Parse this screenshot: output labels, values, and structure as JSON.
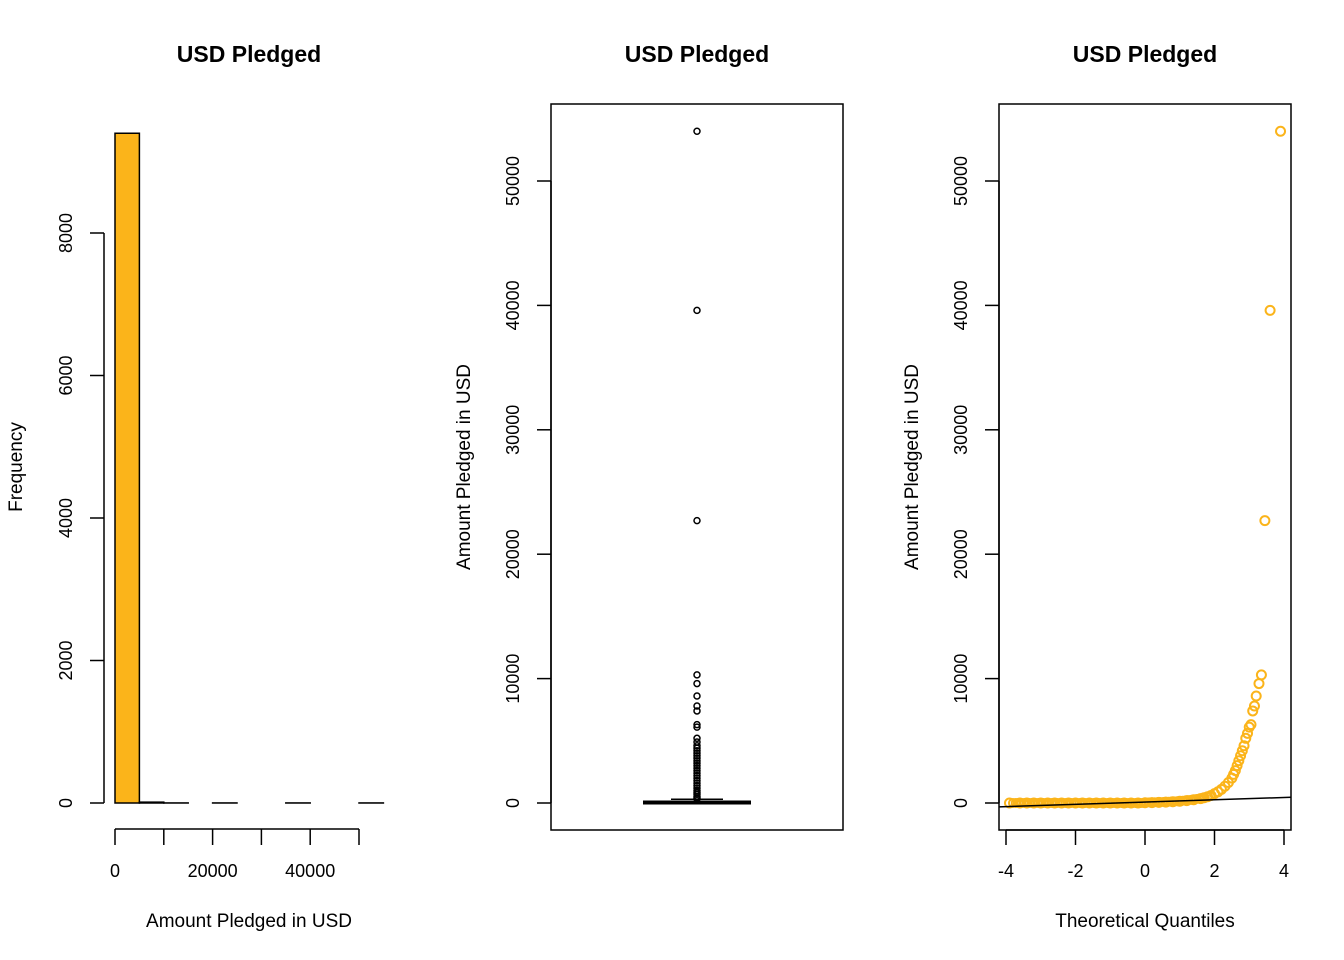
{
  "colors": {
    "fill": "#FBB41A",
    "ink": "#000000"
  },
  "chart_data": [
    {
      "type": "histogram",
      "title": "USD Pledged",
      "xlabel": "Amount Pledged in USD",
      "ylabel": "Frequency",
      "xlim": [
        0,
        55000
      ],
      "ylim": [
        0,
        9400
      ],
      "x_ticks": [
        0,
        20000,
        40000
      ],
      "x_tick_marks": [
        0,
        10000,
        20000,
        30000,
        40000,
        50000
      ],
      "y_ticks": [
        0,
        2000,
        4000,
        6000,
        8000
      ],
      "bins": [
        {
          "from": 0,
          "to": 5000,
          "count": 9400
        },
        {
          "from": 5000,
          "to": 10000,
          "count": 12
        },
        {
          "from": 10000,
          "to": 15000,
          "count": 1
        },
        {
          "from": 15000,
          "to": 20000,
          "count": 0
        },
        {
          "from": 20000,
          "to": 25000,
          "count": 1
        },
        {
          "from": 25000,
          "to": 30000,
          "count": 0
        },
        {
          "from": 30000,
          "to": 35000,
          "count": 0
        },
        {
          "from": 35000,
          "to": 40000,
          "count": 1
        },
        {
          "from": 40000,
          "to": 45000,
          "count": 0
        },
        {
          "from": 45000,
          "to": 50000,
          "count": 0
        },
        {
          "from": 50000,
          "to": 55000,
          "count": 1
        }
      ],
      "fill": "#FBB41A"
    },
    {
      "type": "boxplot",
      "title": "USD Pledged",
      "xlabel": "",
      "ylabel": "Amount Pledged in USD",
      "ylim": [
        -2100,
        56000
      ],
      "y_ticks": [
        0,
        10000,
        20000,
        30000,
        40000,
        50000
      ],
      "box": {
        "q1": 0,
        "median": 30,
        "q3": 120,
        "whisker_low": 0,
        "whisker_high": 300
      },
      "outliers": [
        54000,
        39600,
        22700,
        10300,
        9600,
        8600,
        7800,
        7400,
        6300,
        6100,
        5200,
        4900,
        4600,
        4400,
        4200,
        4000,
        3800,
        3600,
        3400,
        3200,
        3000,
        2800,
        2600,
        2400,
        2200,
        2000,
        1800,
        1600,
        1400,
        1200,
        1000,
        850,
        700,
        550,
        420,
        350
      ]
    },
    {
      "type": "scatter",
      "title": "USD Pledged",
      "xlabel": "Theoretical Quantiles",
      "ylabel": "Amount Pledged in USD",
      "xlim": [
        -4.2,
        4.2
      ],
      "ylim": [
        -2100,
        56000
      ],
      "x_ticks": [
        -4,
        -2,
        0,
        2,
        4
      ],
      "y_ticks": [
        0,
        10000,
        20000,
        30000,
        40000,
        50000
      ],
      "qq_line": [
        [
          -4.2,
          -310
        ],
        [
          4.2,
          460
        ]
      ],
      "marker_color": "#FBB41A",
      "points": [
        [
          -3.9,
          0
        ],
        [
          -3.6,
          0
        ],
        [
          -3.4,
          0
        ],
        [
          -3.2,
          0
        ],
        [
          -3.0,
          0
        ],
        [
          -2.8,
          0
        ],
        [
          -2.6,
          0
        ],
        [
          -2.4,
          0
        ],
        [
          -2.2,
          0
        ],
        [
          -2.0,
          0
        ],
        [
          -1.8,
          0
        ],
        [
          -1.6,
          0
        ],
        [
          -1.4,
          0
        ],
        [
          -1.2,
          0
        ],
        [
          -1.0,
          0
        ],
        [
          -0.8,
          0
        ],
        [
          -0.6,
          0
        ],
        [
          -0.4,
          0
        ],
        [
          -0.2,
          5
        ],
        [
          0.0,
          20
        ],
        [
          0.2,
          30
        ],
        [
          0.4,
          50
        ],
        [
          0.6,
          70
        ],
        [
          0.8,
          100
        ],
        [
          1.0,
          140
        ],
        [
          1.2,
          190
        ],
        [
          1.4,
          260
        ],
        [
          1.6,
          350
        ],
        [
          1.7,
          420
        ],
        [
          1.8,
          500
        ],
        [
          1.9,
          600
        ],
        [
          2.0,
          750
        ],
        [
          2.1,
          900
        ],
        [
          2.2,
          1100
        ],
        [
          2.3,
          1350
        ],
        [
          2.4,
          1650
        ],
        [
          2.5,
          2000
        ],
        [
          2.55,
          2300
        ],
        [
          2.6,
          2600
        ],
        [
          2.65,
          3000
        ],
        [
          2.7,
          3400
        ],
        [
          2.75,
          3800
        ],
        [
          2.8,
          4200
        ],
        [
          2.85,
          4600
        ],
        [
          2.9,
          5200
        ],
        [
          2.95,
          5600
        ],
        [
          3.0,
          6100
        ],
        [
          3.05,
          6300
        ],
        [
          3.1,
          7400
        ],
        [
          3.15,
          7800
        ],
        [
          3.2,
          8600
        ],
        [
          3.28,
          9600
        ],
        [
          3.35,
          10300
        ],
        [
          3.45,
          22700
        ],
        [
          3.6,
          39600
        ],
        [
          3.9,
          54000
        ]
      ]
    }
  ]
}
